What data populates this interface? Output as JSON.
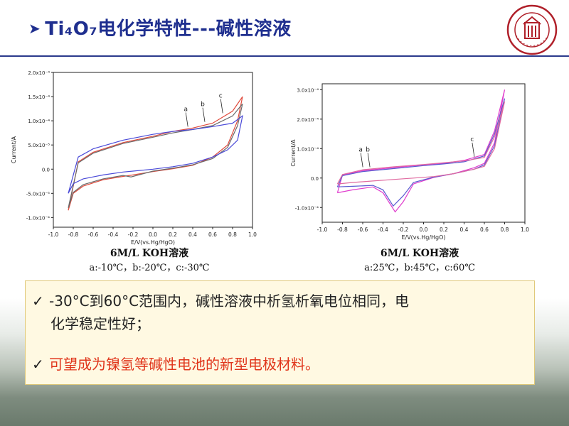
{
  "slide": {
    "title": "Ti₄O₇电化学特性---碱性溶液",
    "colors": {
      "title": "#1f2f8f",
      "rule": "#2b3a8c",
      "highlight": "#e0351b",
      "note_bg": "#fff9e2"
    }
  },
  "logo": {
    "icon": "sichuan-university-seal-icon"
  },
  "bullets": [
    {
      "icon": "check-icon",
      "text_line1": "-30°C到60°C范围内，碱性溶液中析氢析氧电位相同，电",
      "text_line2": "化学稳定性好；"
    },
    {
      "icon": "check-icon",
      "text": "可望成为镍氢等碱性电池的新型电极材料。"
    }
  ],
  "chart_data": [
    {
      "type": "line",
      "xlabel": "E/V(vs.Hg/HgO)",
      "ylabel": "Current/A",
      "xlim": [
        -1.0,
        1.0
      ],
      "ylim": [
        -0.00012,
        0.0002
      ],
      "xticks": [
        "-1.0",
        "-0.8",
        "-0.6",
        "-0.4",
        "-0.2",
        "0.0",
        "0.2",
        "0.4",
        "0.6",
        "0.8",
        "1.0"
      ],
      "yticks": [
        "2.0x10⁻⁴",
        "1.5x10⁻⁴",
        "1.0x10⁻⁴",
        "5.0x10⁻⁵",
        "0.0",
        "-5.0x10⁻⁵",
        "-1.0x10⁻⁴"
      ],
      "ytick_values": [
        0.0002,
        0.00015,
        0.0001,
        5e-05,
        0.0,
        -5e-05,
        -0.0001
      ],
      "annotations": [
        {
          "text": "a",
          "x": 0.33,
          "y": 0.00012
        },
        {
          "text": "b",
          "x": 0.5,
          "y": 0.00013
        },
        {
          "text": "c",
          "x": 0.68,
          "y": 0.000148
        }
      ],
      "caption_title": "6M/L KOH溶液",
      "caption_legend": "a:-10℃，b:-20℃，c:-30℃",
      "grid": false,
      "series": [
        {
          "color": "#e04a3c",
          "forward": [
            [
              -0.85,
              -8.5e-05
            ],
            [
              -0.8,
              -5e-05
            ],
            [
              -0.7,
              -3.5e-05
            ],
            [
              -0.5,
              -2.2e-05
            ],
            [
              -0.3,
              -1.5e-05
            ],
            [
              -0.2,
              -1.2e-05
            ],
            [
              0.0,
              -5e-06
            ],
            [
              0.2,
              1e-06
            ],
            [
              0.4,
              8e-06
            ],
            [
              0.6,
              2.5e-05
            ],
            [
              0.75,
              5e-05
            ],
            [
              0.85,
              0.0001
            ],
            [
              0.9,
              0.00015
            ]
          ],
          "reverse": [
            [
              0.9,
              0.00015
            ],
            [
              0.8,
              0.00012
            ],
            [
              0.6,
              9.5e-05
            ],
            [
              0.4,
              8.5e-05
            ],
            [
              0.2,
              7.8e-05
            ],
            [
              0.0,
              6.8e-05
            ],
            [
              -0.3,
              5.5e-05
            ],
            [
              -0.6,
              3.5e-05
            ],
            [
              -0.75,
              1.5e-05
            ],
            [
              -0.85,
              -8.5e-05
            ]
          ]
        },
        {
          "color": "#6a6a6a",
          "forward": [
            [
              -0.85,
              -8e-05
            ],
            [
              -0.8,
              -4.8e-05
            ],
            [
              -0.7,
              -3.2e-05
            ],
            [
              -0.5,
              -2e-05
            ],
            [
              -0.3,
              -1.3e-05
            ],
            [
              -0.22,
              -1.6e-05
            ],
            [
              0.0,
              -4e-06
            ],
            [
              0.2,
              2e-06
            ],
            [
              0.4,
              9e-06
            ],
            [
              0.6,
              2.2e-05
            ],
            [
              0.75,
              4.5e-05
            ],
            [
              0.85,
              9e-05
            ],
            [
              0.9,
              0.000135
            ]
          ],
          "reverse": [
            [
              0.9,
              0.000135
            ],
            [
              0.8,
              0.00011
            ],
            [
              0.6,
              9e-05
            ],
            [
              0.4,
              8.2e-05
            ],
            [
              0.2,
              7.5e-05
            ],
            [
              0.0,
              6.6e-05
            ],
            [
              -0.3,
              5.3e-05
            ],
            [
              -0.6,
              3.3e-05
            ],
            [
              -0.75,
              1.3e-05
            ],
            [
              -0.85,
              -8e-05
            ]
          ]
        },
        {
          "color": "#4a4ad8",
          "forward": [
            [
              -0.85,
              -5e-05
            ],
            [
              -0.8,
              -3e-05
            ],
            [
              -0.7,
              -2e-05
            ],
            [
              -0.5,
              -1.2e-05
            ],
            [
              -0.3,
              -6e-06
            ],
            [
              -0.2,
              -4e-06
            ],
            [
              0.0,
              0
            ],
            [
              0.2,
              5e-06
            ],
            [
              0.4,
              1.2e-05
            ],
            [
              0.6,
              2.5e-05
            ],
            [
              0.75,
              4e-05
            ],
            [
              0.85,
              6e-05
            ],
            [
              0.9,
              0.00011
            ]
          ],
          "reverse": [
            [
              0.9,
              0.00011
            ],
            [
              0.8,
              9.5e-05
            ],
            [
              0.6,
              8.8e-05
            ],
            [
              0.4,
              8.2e-05
            ],
            [
              0.2,
              7.8e-05
            ],
            [
              0.0,
              7.2e-05
            ],
            [
              -0.3,
              6e-05
            ],
            [
              -0.6,
              4.2e-05
            ],
            [
              -0.75,
              2.5e-05
            ],
            [
              -0.85,
              -5e-05
            ]
          ]
        }
      ]
    },
    {
      "type": "line",
      "xlabel": "E/V(vs.Hg/HgO)",
      "ylabel": "Current/A",
      "xlim": [
        -1.0,
        1.0
      ],
      "ylim": [
        -0.00015,
        0.00032
      ],
      "xticks": [
        "-1.0",
        "-0.8",
        "-0.6",
        "-0.4",
        "-0.2",
        "0.0",
        "0.2",
        "0.4",
        "0.6",
        "0.8",
        "1.0"
      ],
      "yticks": [
        "3.0x10⁻⁴",
        "2.0x10⁻⁴",
        "1.0x10⁻⁴",
        "0.0",
        "-1.0x10⁻⁴"
      ],
      "ytick_values": [
        0.0003,
        0.0002,
        0.0001,
        0.0,
        -0.0001
      ],
      "annotations": [
        {
          "text": "a",
          "x": -0.62,
          "y": 9e-05
        },
        {
          "text": "b",
          "x": -0.55,
          "y": 9e-05
        },
        {
          "text": "c",
          "x": 0.48,
          "y": 0.000125
        }
      ],
      "caption_title": "6M/L KOH溶液",
      "caption_legend": "a:25℃，b:45℃，c:60℃",
      "grid": false,
      "series": [
        {
          "color": "#e03ccd",
          "forward": [
            [
              -0.85,
              -5e-05
            ],
            [
              -0.7,
              -4e-05
            ],
            [
              -0.5,
              -3e-05
            ],
            [
              -0.4,
              -5e-05
            ],
            [
              -0.28,
              -0.000115
            ],
            [
              -0.2,
              -8e-05
            ],
            [
              -0.1,
              -2e-05
            ],
            [
              0.1,
              2e-06
            ],
            [
              0.3,
              1.5e-05
            ],
            [
              0.5,
              3.5e-05
            ],
            [
              0.6,
              5e-05
            ],
            [
              0.7,
              0.00012
            ],
            [
              0.8,
              0.0003
            ]
          ],
          "reverse": [
            [
              0.8,
              0.0003
            ],
            [
              0.7,
              0.00016
            ],
            [
              0.6,
              8e-05
            ],
            [
              0.4,
              6e-05
            ],
            [
              0.2,
              5e-05
            ],
            [
              0.0,
              4.5e-05
            ],
            [
              -0.3,
              3.5e-05
            ],
            [
              -0.6,
              2.5e-05
            ],
            [
              -0.8,
              1e-05
            ],
            [
              -0.85,
              -5e-05
            ]
          ]
        },
        {
          "color": "#5a5ad0",
          "forward": [
            [
              -0.85,
              -3e-05
            ],
            [
              -0.7,
              -2.8e-05
            ],
            [
              -0.5,
              -2.5e-05
            ],
            [
              -0.4,
              -4e-05
            ],
            [
              -0.3,
              -9.5e-05
            ],
            [
              -0.2,
              -6e-05
            ],
            [
              -0.1,
              -1.5e-05
            ],
            [
              0.1,
              3e-06
            ],
            [
              0.3,
              1.5e-05
            ],
            [
              0.5,
              3e-05
            ],
            [
              0.6,
              4.5e-05
            ],
            [
              0.7,
              0.00011
            ],
            [
              0.8,
              0.00027
            ]
          ],
          "reverse": [
            [
              0.8,
              0.00027
            ],
            [
              0.7,
              0.00015
            ],
            [
              0.6,
              7.5e-05
            ],
            [
              0.4,
              5.5e-05
            ],
            [
              0.2,
              4.8e-05
            ],
            [
              0.0,
              4.2e-05
            ],
            [
              -0.3,
              3.2e-05
            ],
            [
              -0.6,
              2.2e-05
            ],
            [
              -0.8,
              8e-06
            ],
            [
              -0.85,
              -3e-05
            ]
          ]
        },
        {
          "color": "#e06aa0",
          "forward": [
            [
              -0.85,
              -2e-05
            ],
            [
              -0.7,
              -1.5e-05
            ],
            [
              -0.5,
              -1e-05
            ],
            [
              -0.3,
              -5e-06
            ],
            [
              -0.1,
              0
            ],
            [
              0.1,
              5e-06
            ],
            [
              0.3,
              1.5e-05
            ],
            [
              0.5,
              3e-05
            ],
            [
              0.6,
              4e-05
            ],
            [
              0.7,
              0.0001
            ],
            [
              0.8,
              0.00026
            ]
          ],
          "reverse": [
            [
              0.8,
              0.00026
            ],
            [
              0.7,
              0.00014
            ],
            [
              0.6,
              7e-05
            ],
            [
              0.4,
              5.8e-05
            ],
            [
              0.2,
              5.2e-05
            ],
            [
              0.0,
              4.6e-05
            ],
            [
              -0.3,
              3.8e-05
            ],
            [
              -0.6,
              2.8e-05
            ],
            [
              -0.8,
              1.2e-05
            ],
            [
              -0.85,
              -2e-05
            ]
          ]
        }
      ]
    }
  ]
}
